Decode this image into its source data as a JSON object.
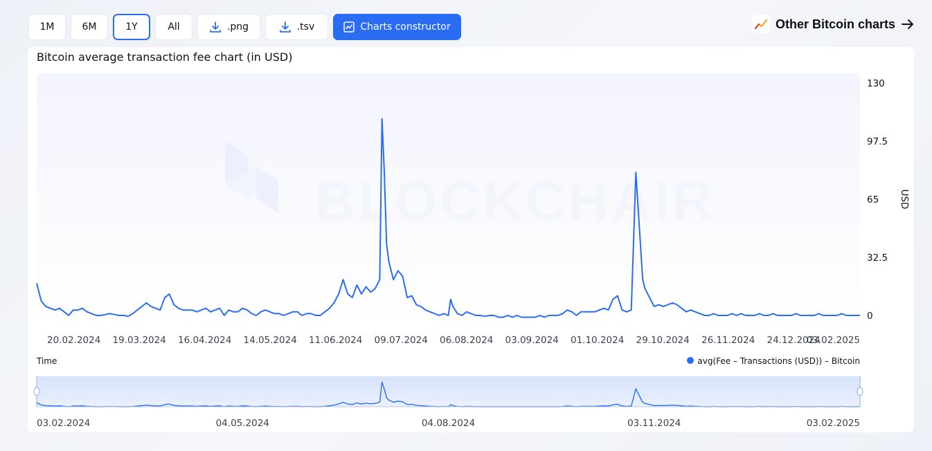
{
  "toolbar": {
    "ranges": [
      "1M",
      "6M",
      "1Y",
      "All"
    ],
    "active_range": "1Y",
    "png_label": ".png",
    "tsv_label": ".tsv",
    "constructor_label": "Charts constructor"
  },
  "other_link": {
    "label": "Other Bitcoin charts"
  },
  "colors": {
    "accent": "#2a6df4",
    "line": "#2a6df4"
  },
  "chart_data": {
    "type": "line",
    "title": "Bitcoin average transaction fee chart (in USD)",
    "xlabel": "Time",
    "ylabel": "USD",
    "ylim": [
      0,
      130
    ],
    "yticks": [
      "130",
      "97.5",
      "65",
      "32.5",
      "0"
    ],
    "xticks": [
      "20.02.2024",
      "19.03.2024",
      "16.04.2024",
      "14.05.2024",
      "11.06.2024",
      "09.07.2024",
      "06.08.2024",
      "03.09.2024",
      "01.10.2024",
      "29.10.2024",
      "26.11.2024",
      "24.12.2024",
      "03.02.2025"
    ],
    "navigator_ticks": [
      "03.02.2024",
      "04.05.2024",
      "04.08.2024",
      "03.11.2024",
      "03.02.2025"
    ],
    "x_range": [
      "03.02.2024",
      "03.02.2025"
    ],
    "watermark": "BLOCKCHAIR",
    "series": [
      {
        "name": "avg(Fee – Transactions (USD)) – Bitcoin",
        "points": [
          [
            0,
            18
          ],
          [
            2,
            8
          ],
          [
            4,
            5
          ],
          [
            6,
            4
          ],
          [
            8,
            3
          ],
          [
            10,
            4
          ],
          [
            12,
            2
          ],
          [
            14,
            0
          ],
          [
            16,
            3
          ],
          [
            18,
            3
          ],
          [
            20,
            4
          ],
          [
            22,
            2
          ],
          [
            24,
            1
          ],
          [
            26,
            0
          ],
          [
            28,
            0
          ],
          [
            30,
            0.5
          ],
          [
            32,
            1
          ],
          [
            34,
            0.5
          ],
          [
            36,
            0
          ],
          [
            38,
            0
          ],
          [
            40,
            -0.5
          ],
          [
            42,
            1
          ],
          [
            44,
            3
          ],
          [
            46,
            5
          ],
          [
            48,
            7
          ],
          [
            50,
            5
          ],
          [
            52,
            4
          ],
          [
            54,
            3
          ],
          [
            56,
            10
          ],
          [
            58,
            12
          ],
          [
            60,
            6
          ],
          [
            62,
            4
          ],
          [
            64,
            3
          ],
          [
            66,
            3
          ],
          [
            68,
            3
          ],
          [
            70,
            2
          ],
          [
            72,
            3
          ],
          [
            74,
            4
          ],
          [
            76,
            2
          ],
          [
            78,
            3
          ],
          [
            80,
            4
          ],
          [
            82,
            0
          ],
          [
            84,
            3
          ],
          [
            86,
            2
          ],
          [
            88,
            2
          ],
          [
            90,
            4
          ],
          [
            92,
            3
          ],
          [
            94,
            1
          ],
          [
            96,
            0
          ],
          [
            98,
            2
          ],
          [
            100,
            3
          ],
          [
            102,
            2
          ],
          [
            104,
            1
          ],
          [
            106,
            1
          ],
          [
            108,
            0
          ],
          [
            110,
            1
          ],
          [
            112,
            2
          ],
          [
            114,
            2
          ],
          [
            116,
            0
          ],
          [
            118,
            1
          ],
          [
            120,
            1
          ],
          [
            122,
            0
          ],
          [
            124,
            0
          ],
          [
            126,
            2
          ],
          [
            128,
            4
          ],
          [
            130,
            7
          ],
          [
            132,
            12
          ],
          [
            134,
            20
          ],
          [
            136,
            12
          ],
          [
            138,
            10
          ],
          [
            140,
            17
          ],
          [
            142,
            12
          ],
          [
            144,
            16
          ],
          [
            146,
            13
          ],
          [
            148,
            15
          ],
          [
            150,
            20
          ],
          [
            151,
            110
          ],
          [
            152,
            80
          ],
          [
            153,
            40
          ],
          [
            154,
            30
          ],
          [
            156,
            20
          ],
          [
            158,
            25
          ],
          [
            160,
            22
          ],
          [
            162,
            10
          ],
          [
            164,
            11
          ],
          [
            166,
            6
          ],
          [
            168,
            5
          ],
          [
            170,
            3
          ],
          [
            172,
            2
          ],
          [
            174,
            1
          ],
          [
            176,
            0
          ],
          [
            178,
            1
          ],
          [
            180,
            0
          ],
          [
            181,
            9
          ],
          [
            182,
            5
          ],
          [
            184,
            1
          ],
          [
            186,
            0
          ],
          [
            188,
            2
          ],
          [
            190,
            1
          ],
          [
            192,
            0
          ],
          [
            194,
            0
          ],
          [
            196,
            -0.5
          ],
          [
            198,
            0
          ],
          [
            200,
            0
          ],
          [
            202,
            -1
          ],
          [
            204,
            -1
          ],
          [
            206,
            0
          ],
          [
            208,
            -1
          ],
          [
            210,
            0
          ],
          [
            212,
            -1
          ],
          [
            214,
            -1
          ],
          [
            216,
            -1
          ],
          [
            218,
            -1
          ],
          [
            220,
            0
          ],
          [
            222,
            -1
          ],
          [
            224,
            0
          ],
          [
            226,
            0
          ],
          [
            228,
            0
          ],
          [
            230,
            1
          ],
          [
            232,
            3
          ],
          [
            234,
            2
          ],
          [
            236,
            0
          ],
          [
            238,
            2
          ],
          [
            240,
            2
          ],
          [
            242,
            2
          ],
          [
            244,
            2
          ],
          [
            246,
            3
          ],
          [
            248,
            4
          ],
          [
            250,
            3
          ],
          [
            252,
            9
          ],
          [
            254,
            11
          ],
          [
            256,
            3
          ],
          [
            258,
            2
          ],
          [
            260,
            3
          ],
          [
            262,
            80
          ],
          [
            264,
            40
          ],
          [
            265,
            20
          ],
          [
            266,
            15
          ],
          [
            268,
            10
          ],
          [
            270,
            5
          ],
          [
            272,
            6
          ],
          [
            274,
            5
          ],
          [
            276,
            6
          ],
          [
            278,
            7
          ],
          [
            280,
            6
          ],
          [
            282,
            4
          ],
          [
            284,
            2
          ],
          [
            286,
            3
          ],
          [
            288,
            2
          ],
          [
            290,
            1
          ],
          [
            292,
            0
          ],
          [
            294,
            0
          ],
          [
            296,
            1
          ],
          [
            298,
            0
          ],
          [
            300,
            0
          ],
          [
            302,
            0
          ],
          [
            304,
            1
          ],
          [
            306,
            0
          ],
          [
            308,
            1
          ],
          [
            310,
            0
          ],
          [
            312,
            0
          ],
          [
            314,
            0
          ],
          [
            316,
            1
          ],
          [
            318,
            0
          ],
          [
            320,
            0
          ],
          [
            322,
            1
          ],
          [
            324,
            0
          ],
          [
            326,
            0
          ],
          [
            328,
            0
          ],
          [
            330,
            0
          ],
          [
            332,
            1
          ],
          [
            334,
            0
          ],
          [
            336,
            0
          ],
          [
            338,
            0
          ],
          [
            340,
            0
          ],
          [
            342,
            1
          ],
          [
            344,
            0
          ],
          [
            346,
            0
          ],
          [
            348,
            0
          ],
          [
            350,
            0
          ],
          [
            352,
            1
          ],
          [
            354,
            0
          ],
          [
            356,
            0
          ],
          [
            358,
            0
          ],
          [
            360,
            0
          ]
        ]
      }
    ]
  }
}
